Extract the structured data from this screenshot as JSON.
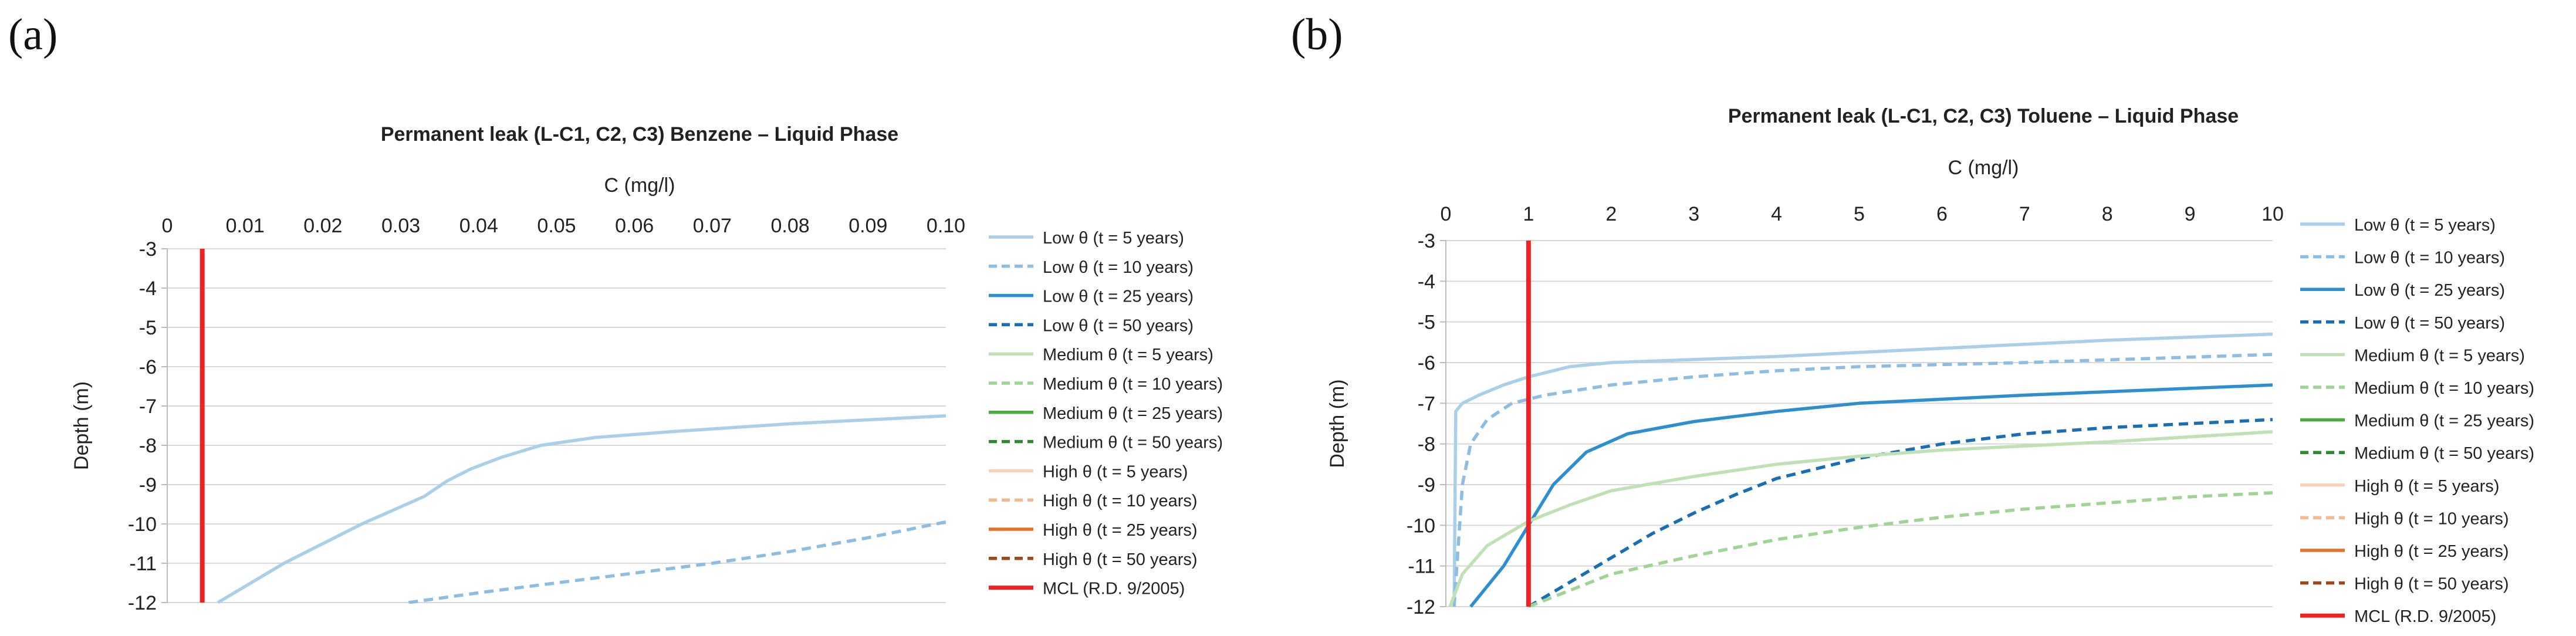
{
  "panels": [
    {
      "label": "(a)"
    },
    {
      "label": "(b)"
    }
  ],
  "chart_data": [
    {
      "type": "line",
      "title": "Permanent leak (L-C1, C2, C3) Benzene – Liquid Phase",
      "xlabel": "C (mg/l)",
      "ylabel": "Depth (m)",
      "xlim": [
        0,
        0.1
      ],
      "ylim": [
        -12,
        -3
      ],
      "x_ticks": [
        "0",
        "0.01",
        "0.02",
        "0.03",
        "0.04",
        "0.05",
        "0.06",
        "0.07",
        "0.08",
        "0.09",
        "0.10"
      ],
      "y_ticks": [
        "-3",
        "-4",
        "-5",
        "-6",
        "-7",
        "-8",
        "-9",
        "-10",
        "-11",
        "-12"
      ],
      "grid": true,
      "legend_position": "right",
      "legend": [
        {
          "name": "Low θ (t = 5 years)",
          "color": "#a9cfe9",
          "dash": "solid"
        },
        {
          "name": "Low θ (t = 10 years)",
          "color": "#8dbde3",
          "dash": "dashed"
        },
        {
          "name": "Low θ (t = 25 years)",
          "color": "#2e8fd0",
          "dash": "solid"
        },
        {
          "name": "Low θ (t = 50 years)",
          "color": "#1a6fb4",
          "dash": "dashed"
        },
        {
          "name": "Medium θ (t = 5 years)",
          "color": "#bfe1b5",
          "dash": "solid"
        },
        {
          "name": "Medium θ (t = 10 years)",
          "color": "#9fd494",
          "dash": "dashed"
        },
        {
          "name": "Medium θ (t = 25 years)",
          "color": "#4aab3e",
          "dash": "solid"
        },
        {
          "name": "Medium θ (t = 50 years)",
          "color": "#2e8a2c",
          "dash": "dashed"
        },
        {
          "name": "High θ (t = 5 years)",
          "color": "#f9d2b8",
          "dash": "solid"
        },
        {
          "name": "High θ (t = 10 years)",
          "color": "#f5b88f",
          "dash": "dashed"
        },
        {
          "name": "High θ (t = 25 years)",
          "color": "#e8702a",
          "dash": "solid"
        },
        {
          "name": "High θ (t = 50 years)",
          "color": "#9c4a1c",
          "dash": "dashed"
        },
        {
          "name": "MCL (R.D. 9/2005)",
          "color": "#ee2222",
          "dash": "solid"
        }
      ],
      "series": [
        {
          "name": "Low θ (t = 5 years)",
          "points": [
            [
              0.0065,
              -12
            ],
            [
              0.015,
              -11
            ],
            [
              0.025,
              -10
            ],
            [
              0.033,
              -9.3
            ],
            [
              0.036,
              -8.9
            ],
            [
              0.039,
              -8.6
            ],
            [
              0.043,
              -8.3
            ],
            [
              0.048,
              -8.0
            ],
            [
              0.055,
              -7.8
            ],
            [
              0.065,
              -7.65
            ],
            [
              0.08,
              -7.45
            ],
            [
              0.1,
              -7.25
            ]
          ]
        },
        {
          "name": "Low θ (t = 10 years)",
          "points": [
            [
              0.031,
              -12
            ],
            [
              0.04,
              -11.75
            ],
            [
              0.05,
              -11.5
            ],
            [
              0.06,
              -11.25
            ],
            [
              0.07,
              -11.0
            ],
            [
              0.08,
              -10.7
            ],
            [
              0.09,
              -10.35
            ],
            [
              0.1,
              -9.95
            ]
          ]
        },
        {
          "name": "MCL (R.D. 9/2005)",
          "points": [
            [
              0.0045,
              -3
            ],
            [
              0.0045,
              -12
            ]
          ]
        }
      ]
    },
    {
      "type": "line",
      "title": "Permanent leak (L-C1, C2, C3) Toluene – Liquid Phase",
      "xlabel": "C (mg/l)",
      "ylabel": "Depth (m)",
      "xlim": [
        0,
        10
      ],
      "ylim": [
        -12,
        -3
      ],
      "x_ticks": [
        "0",
        "1",
        "2",
        "3",
        "4",
        "5",
        "6",
        "7",
        "8",
        "9",
        "10"
      ],
      "y_ticks": [
        "-3",
        "-4",
        "-5",
        "-6",
        "-7",
        "-8",
        "-9",
        "-10",
        "-11",
        "-12"
      ],
      "grid": true,
      "legend_position": "right",
      "legend": [
        {
          "name": "Low θ (t = 5 years)",
          "color": "#a9cfe9",
          "dash": "solid"
        },
        {
          "name": "Low θ (t = 10 years)",
          "color": "#8dbde3",
          "dash": "dashed"
        },
        {
          "name": "Low θ (t = 25 years)",
          "color": "#2e8fd0",
          "dash": "solid"
        },
        {
          "name": "Low θ (t = 50 years)",
          "color": "#1a6fb4",
          "dash": "dashed"
        },
        {
          "name": "Medium θ (t = 5 years)",
          "color": "#bfe1b5",
          "dash": "solid"
        },
        {
          "name": "Medium θ (t = 10 years)",
          "color": "#9fd494",
          "dash": "dashed"
        },
        {
          "name": "Medium θ (t = 25 years)",
          "color": "#4aab3e",
          "dash": "solid"
        },
        {
          "name": "Medium θ (t = 50 years)",
          "color": "#2e8a2c",
          "dash": "dashed"
        },
        {
          "name": "High θ (t = 5 years)",
          "color": "#f9d2b8",
          "dash": "solid"
        },
        {
          "name": "High θ (t = 10 years)",
          "color": "#f5b88f",
          "dash": "dashed"
        },
        {
          "name": "High θ (t = 25 years)",
          "color": "#e8702a",
          "dash": "solid"
        },
        {
          "name": "High θ (t = 50 years)",
          "color": "#9c4a1c",
          "dash": "dashed"
        },
        {
          "name": "MCL (R.D. 9/2005)",
          "color": "#ee2222",
          "dash": "solid"
        }
      ],
      "series": [
        {
          "name": "Low θ (t = 5 years)",
          "points": [
            [
              0.1,
              -12
            ],
            [
              0.12,
              -7.2
            ],
            [
              0.2,
              -7.0
            ],
            [
              0.4,
              -6.8
            ],
            [
              0.7,
              -6.55
            ],
            [
              1.0,
              -6.35
            ],
            [
              1.5,
              -6.1
            ],
            [
              2,
              -6.0
            ],
            [
              4,
              -5.85
            ],
            [
              6,
              -5.65
            ],
            [
              8,
              -5.45
            ],
            [
              10,
              -5.3
            ]
          ]
        },
        {
          "name": "Low θ (t = 10 years)",
          "points": [
            [
              0.1,
              -12
            ],
            [
              0.2,
              -9
            ],
            [
              0.3,
              -8
            ],
            [
              0.5,
              -7.4
            ],
            [
              0.8,
              -7.0
            ],
            [
              1.2,
              -6.8
            ],
            [
              2,
              -6.55
            ],
            [
              3,
              -6.35
            ],
            [
              4,
              -6.2
            ],
            [
              5,
              -6.1
            ],
            [
              7,
              -6.0
            ],
            [
              10,
              -5.8
            ]
          ]
        },
        {
          "name": "Low θ (t = 25 years)",
          "points": [
            [
              0.3,
              -12
            ],
            [
              0.7,
              -11
            ],
            [
              1.0,
              -10
            ],
            [
              1.3,
              -9
            ],
            [
              1.7,
              -8.2
            ],
            [
              2.2,
              -7.75
            ],
            [
              3,
              -7.45
            ],
            [
              4,
              -7.2
            ],
            [
              5,
              -7.0
            ],
            [
              7,
              -6.8
            ],
            [
              10,
              -6.55
            ]
          ]
        },
        {
          "name": "Low θ (t = 50 years)",
          "points": [
            [
              1.0,
              -12
            ],
            [
              1.5,
              -11.4
            ],
            [
              2,
              -10.8
            ],
            [
              2.5,
              -10.2
            ],
            [
              3,
              -9.7
            ],
            [
              3.5,
              -9.25
            ],
            [
              4,
              -8.85
            ],
            [
              5,
              -8.35
            ],
            [
              6,
              -8.0
            ],
            [
              7,
              -7.75
            ],
            [
              8,
              -7.6
            ],
            [
              10,
              -7.4
            ]
          ]
        },
        {
          "name": "Medium θ (t = 5 years)",
          "points": [
            [
              0.05,
              -12
            ],
            [
              0.2,
              -11.2
            ],
            [
              0.5,
              -10.5
            ],
            [
              1.0,
              -9.9
            ],
            [
              1.5,
              -9.5
            ],
            [
              2,
              -9.15
            ],
            [
              3,
              -8.8
            ],
            [
              4,
              -8.5
            ],
            [
              5,
              -8.3
            ],
            [
              6,
              -8.15
            ],
            [
              8,
              -7.95
            ],
            [
              10,
              -7.7
            ]
          ]
        },
        {
          "name": "Medium θ (t = 10 years)",
          "points": [
            [
              1.0,
              -12
            ],
            [
              1.5,
              -11.6
            ],
            [
              2,
              -11.2
            ],
            [
              3,
              -10.75
            ],
            [
              4,
              -10.35
            ],
            [
              5,
              -10.05
            ],
            [
              6,
              -9.8
            ],
            [
              7,
              -9.6
            ],
            [
              8,
              -9.45
            ],
            [
              9,
              -9.3
            ],
            [
              10,
              -9.2
            ]
          ]
        },
        {
          "name": "MCL (R.D. 9/2005)",
          "points": [
            [
              1,
              -3
            ],
            [
              1,
              -12
            ]
          ]
        }
      ]
    }
  ]
}
